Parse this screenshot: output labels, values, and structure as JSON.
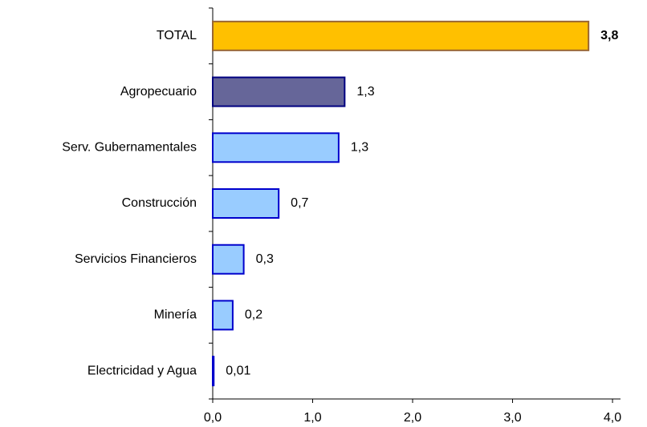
{
  "chart_data": {
    "type": "bar",
    "orientation": "horizontal",
    "categories": [
      "TOTAL",
      "Agropecuario",
      "Serv. Gubernamentales",
      "Construcción",
      "Servicios Financieros",
      "Minería",
      "Electricidad y Agua"
    ],
    "values": [
      3.76,
      1.32,
      1.26,
      0.66,
      0.31,
      0.2,
      0.01
    ],
    "value_labels": [
      "3,8",
      "1,3",
      "1,3",
      "0,7",
      "0,3",
      "0,2",
      "0,01"
    ],
    "colors": [
      "#FFC000",
      "#666699",
      "#99CCFF",
      "#99CCFF",
      "#99CCFF",
      "#99CCFF",
      "#99CCFF"
    ],
    "border_colors": [
      "#996633",
      "#000080",
      "#0000CC",
      "#0000CC",
      "#0000CC",
      "#0000CC",
      "#0000CC"
    ],
    "xlim": [
      0,
      4.08
    ],
    "xticks": [
      {
        "value": 0,
        "label": "0,0"
      },
      {
        "value": 1,
        "label": "1,0"
      },
      {
        "value": 2,
        "label": "2,0"
      },
      {
        "value": 3,
        "label": "3,0"
      },
      {
        "value": 4,
        "label": "4,0"
      }
    ]
  }
}
